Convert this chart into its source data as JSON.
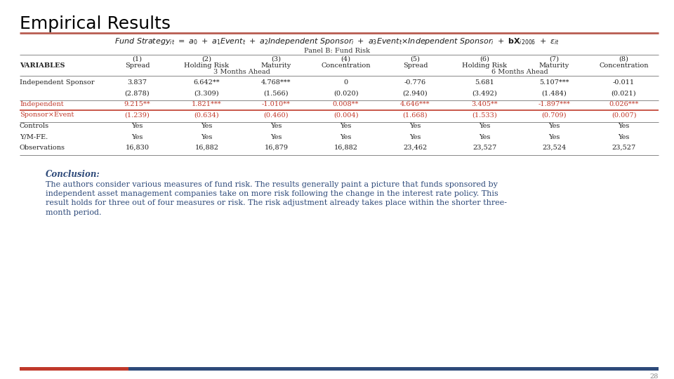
{
  "title": "Empirical Results",
  "title_font": "Courier New",
  "title_fontsize": 18,
  "title_color": "#000000",
  "bg_color": "#ffffff",
  "panel_label": "Panel B: Fund Risk",
  "col_headers_num": [
    "(1)",
    "(2)",
    "(3)",
    "(4)",
    "(5)",
    "(6)",
    "(7)",
    "(8)"
  ],
  "col_headers_name": [
    "Spread",
    "Holding Risk",
    "Maturity",
    "Concentration",
    "Spread",
    "Holding Risk",
    "Maturity",
    "Concentration"
  ],
  "col_subheader1": "3 Months Ahead",
  "col_subheader2": "6 Months Ahead",
  "table_data": [
    [
      "3.837",
      "6.642**",
      "4.768***",
      "0",
      "-0.776",
      "5.681",
      "5.107***",
      "-0.011"
    ],
    [
      "(2.878)",
      "(3.309)",
      "(1.566)",
      "(0.020)",
      "(2.940)",
      "(3.492)",
      "(1.484)",
      "(0.021)"
    ],
    [
      "9.215**",
      "1.821***",
      "-1.010**",
      "0.008**",
      "4.646***",
      "3.405**",
      "-1.897***",
      "0.026***"
    ],
    [
      "(1.239)",
      "(0.634)",
      "(0.460)",
      "(0.004)",
      "(1.668)",
      "(1.533)",
      "(0.709)",
      "(0.007)"
    ],
    [
      "Yes",
      "Yes",
      "Yes",
      "Yes",
      "Yes",
      "Yes",
      "Yes",
      "Yes"
    ],
    [
      "Yes",
      "Yes",
      "Yes",
      "Yes",
      "Yes",
      "Yes",
      "Yes",
      "Yes"
    ],
    [
      "16,830",
      "16,882",
      "16,879",
      "16,882",
      "23,462",
      "23,527",
      "23,524",
      "23,527"
    ]
  ],
  "highlight_color": "#c0392b",
  "normal_color": "#222222",
  "variables_label": "VARIABLES",
  "conclusion_title": "Conclusion:",
  "conclusion_lines": [
    "The authors consider various measures of fund risk. The results generally paint a picture that funds sponsored by",
    "independent asset management companies take on more risk following the change in the interest rate policy. This",
    "result holds for three out of four measures or risk. The risk adjustment already takes place within the shorter three-",
    "month period."
  ],
  "conclusion_color": "#2e4a7a",
  "footer_bar_red": "#c0392b",
  "footer_bar_blue": "#2e4a7a",
  "footer_page": "28",
  "header_line_color": "#b85c50",
  "table_line_color": "#888888"
}
